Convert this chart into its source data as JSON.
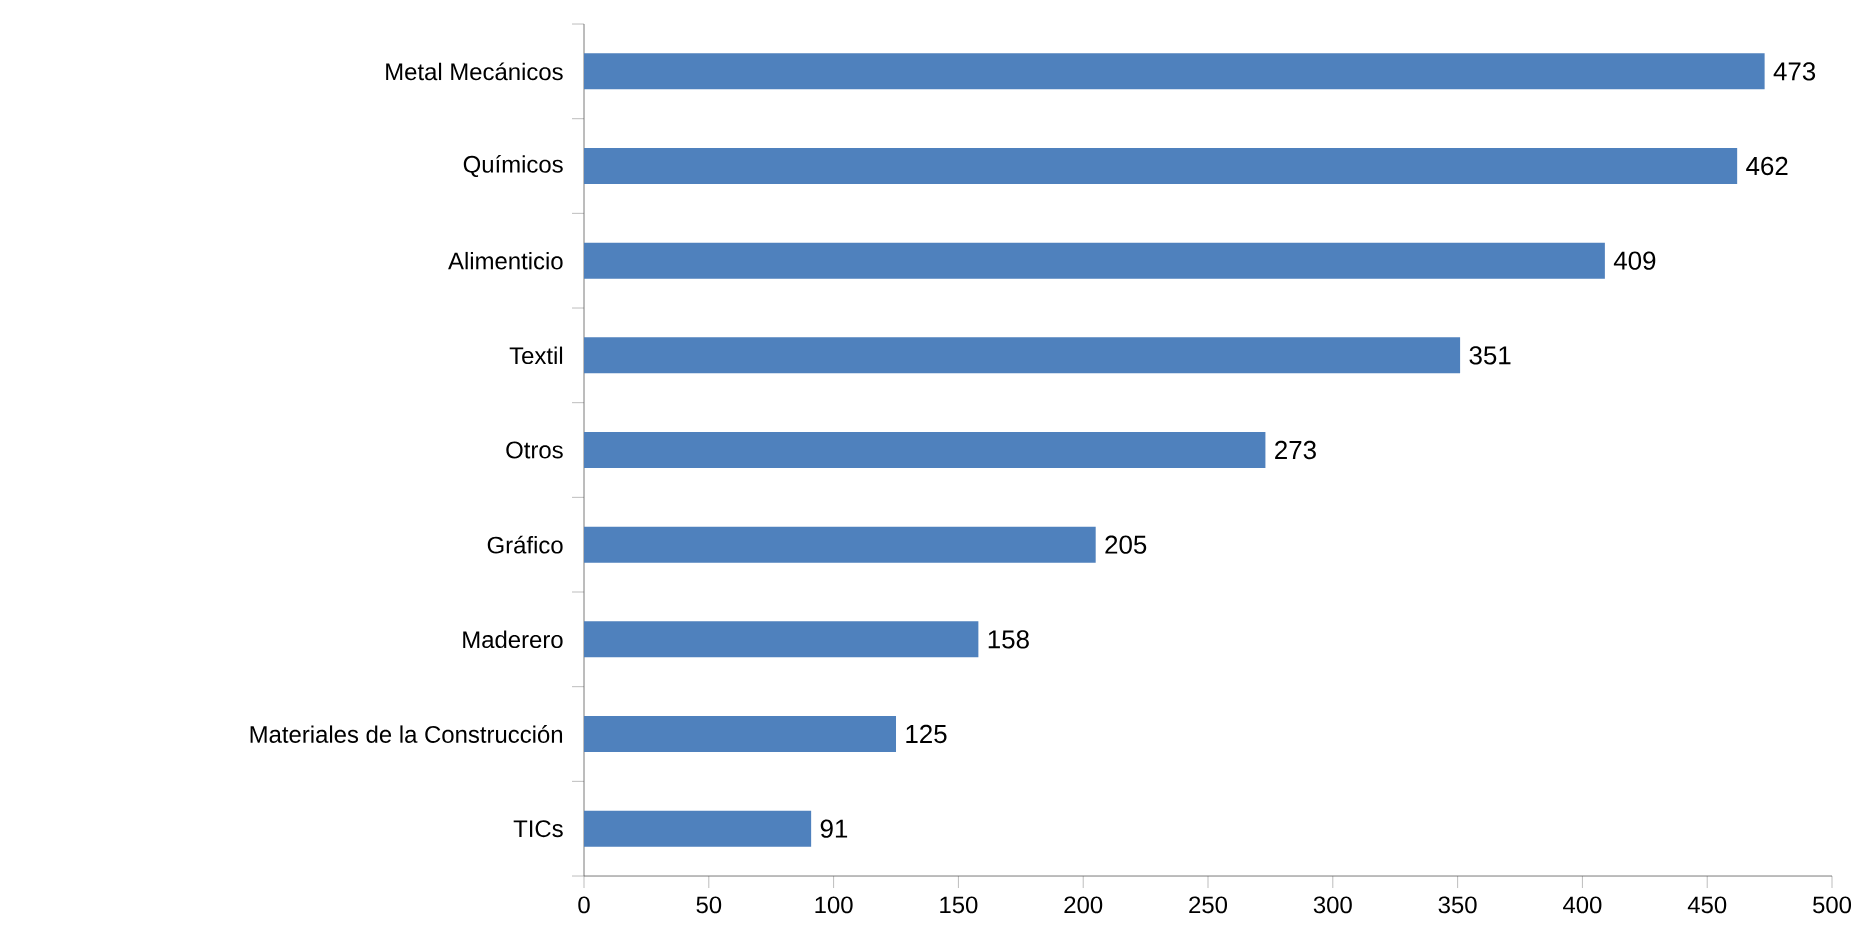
{
  "chart_data": {
    "type": "bar",
    "orientation": "horizontal",
    "categories": [
      "Metal Mecánicos",
      "Químicos",
      "Alimenticio",
      "Textil",
      "Otros",
      "Gráfico",
      "Maderero",
      "Materiales de la Construcción",
      "TICs"
    ],
    "values": [
      473,
      462,
      409,
      351,
      273,
      205,
      158,
      125,
      91
    ],
    "color": "#4f81bd",
    "xlim": [
      0,
      500
    ],
    "xticks": [
      0,
      50,
      100,
      150,
      200,
      250,
      300,
      350,
      400,
      450,
      500
    ],
    "data_labels": true,
    "grid": false
  }
}
